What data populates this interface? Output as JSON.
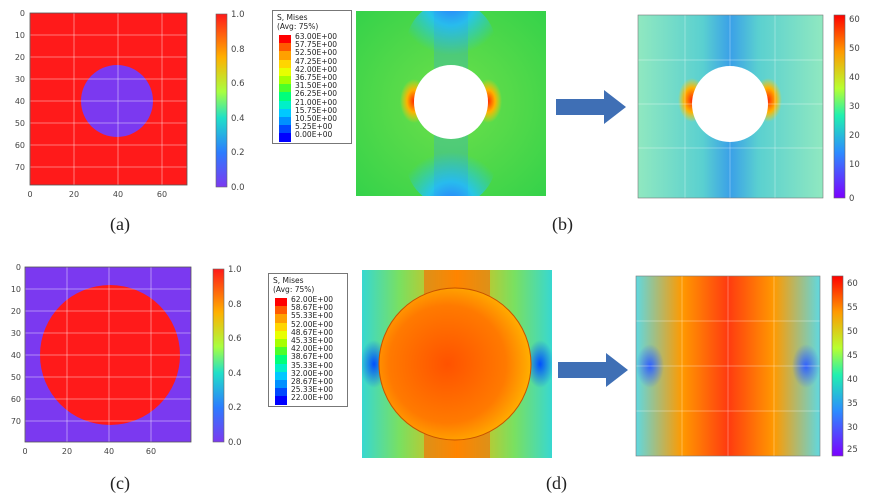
{
  "panels": [
    {
      "id": "a",
      "caption": "(a)",
      "xticks": [
        "0",
        "20",
        "40",
        "60"
      ],
      "yticks": [
        "0",
        "10",
        "20",
        "30",
        "40",
        "50",
        "60",
        "70"
      ],
      "colorbar_ticks": [
        "1.0",
        "0.8",
        "0.6",
        "0.4",
        "0.2",
        "0.0"
      ]
    },
    {
      "id": "b",
      "caption": "(b)",
      "legend_title": "S, Mises",
      "legend_subtitle": "(Avg: 75%)",
      "legend_values": [
        "63.00E+00",
        "57.75E+00",
        "52.50E+00",
        "47.25E+00",
        "42.00E+00",
        "36.75E+00",
        "31.50E+00",
        "26.25E+00",
        "21.00E+00",
        "15.75E+00",
        "10.50E+00",
        "5.25E+00",
        "0.00E+00"
      ],
      "colorbar_ticks": [
        "60",
        "50",
        "40",
        "30",
        "20",
        "10",
        "0"
      ]
    },
    {
      "id": "c",
      "caption": "(c)",
      "xticks": [
        "0",
        "20",
        "40",
        "60"
      ],
      "yticks": [
        "0",
        "10",
        "20",
        "30",
        "40",
        "50",
        "60",
        "70"
      ],
      "colorbar_ticks": [
        "1.0",
        "0.8",
        "0.6",
        "0.4",
        "0.2",
        "0.0"
      ]
    },
    {
      "id": "d",
      "caption": "(d)",
      "legend_title": "S, Mises",
      "legend_subtitle": "(Avg: 75%)",
      "legend_values": [
        "62.00E+00",
        "58.67E+00",
        "55.33E+00",
        "52.00E+00",
        "48.67E+00",
        "45.33E+00",
        "42.00E+00",
        "38.67E+00",
        "35.33E+00",
        "32.00E+00",
        "28.67E+00",
        "25.33E+00",
        "22.00E+00"
      ],
      "colorbar_ticks": [
        "60",
        "55",
        "50",
        "45",
        "40",
        "35",
        "30",
        "25"
      ]
    }
  ],
  "colors": {
    "red": "#ff1a1a",
    "purple": "#7b39f0",
    "arrow": "#3f6fb5",
    "legend_scale": [
      "#ff0000",
      "#ff5a00",
      "#ffa000",
      "#ffd500",
      "#e8ff00",
      "#a6ff00",
      "#4cff2a",
      "#00ff7b",
      "#00f0c8",
      "#00c8ff",
      "#0090ff",
      "#0048ff",
      "#0000ff"
    ]
  }
}
